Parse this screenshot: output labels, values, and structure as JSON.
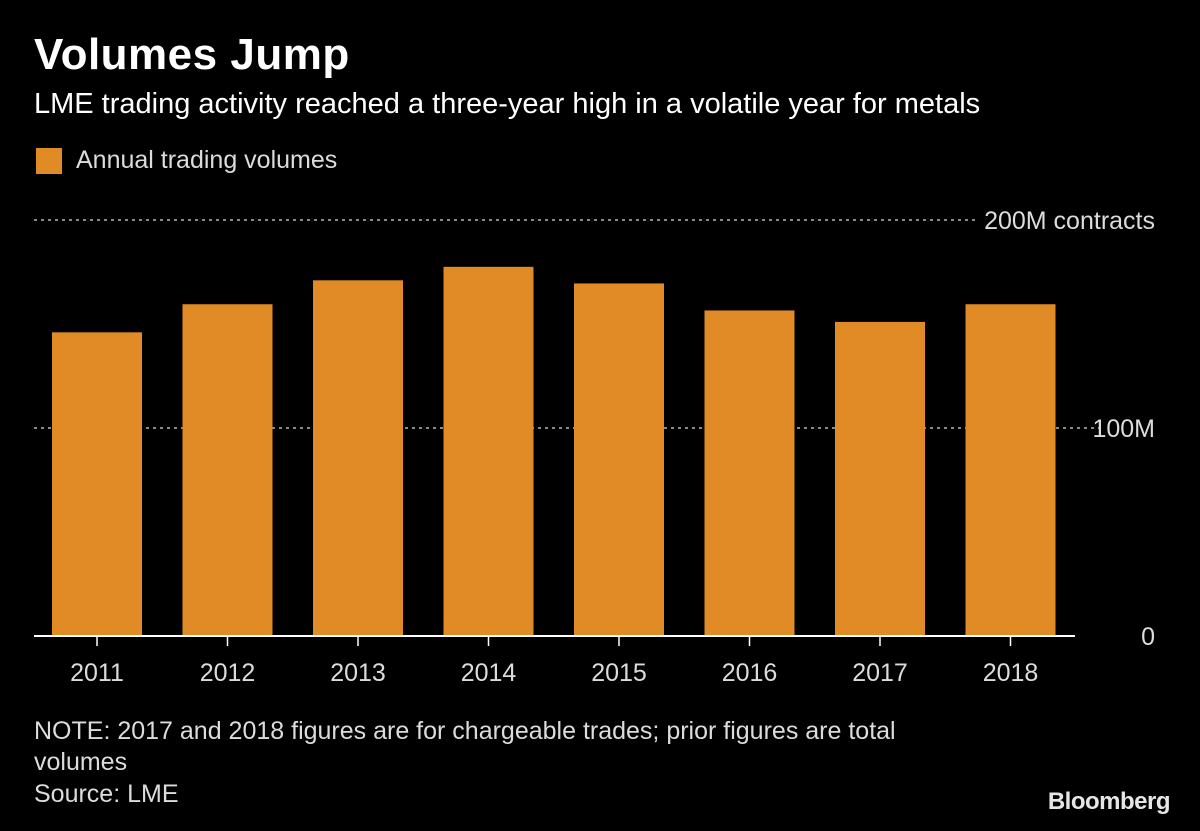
{
  "header": {
    "title": "Volumes Jump",
    "subtitle": "LME trading activity reached a three-year high in a volatile year for metals"
  },
  "legend": {
    "label": "Annual trading volumes"
  },
  "colors": {
    "background": "#000000",
    "bar": "#E08B26",
    "gridline": "#8a8a8a",
    "axis": "#ffffff",
    "text": "#ffffff"
  },
  "chart_data": {
    "type": "bar",
    "title": "Volumes Jump",
    "subtitle": "LME trading activity reached a three-year high in a volatile year for metals",
    "categories": [
      "2011",
      "2012",
      "2013",
      "2014",
      "2015",
      "2016",
      "2017",
      "2018"
    ],
    "series": [
      {
        "name": "Annual trading volumes",
        "values": [
          146,
          159.5,
          171,
          177.5,
          169.5,
          156.5,
          151,
          159.5
        ]
      }
    ],
    "ylim": [
      0,
      200
    ],
    "yticks": [
      {
        "value": 0,
        "label": "0"
      },
      {
        "value": 100,
        "label": "100M"
      },
      {
        "value": 200,
        "label": "200M contracts"
      }
    ],
    "ylabel": "",
    "xlabel": "",
    "unit": "million contracts",
    "grid": true,
    "legend_position": "top-left"
  },
  "footer": {
    "note": "NOTE: 2017 and 2018 figures are for chargeable trades; prior figures are total volumes",
    "source": "Source: LME",
    "brand": "Bloomberg"
  }
}
